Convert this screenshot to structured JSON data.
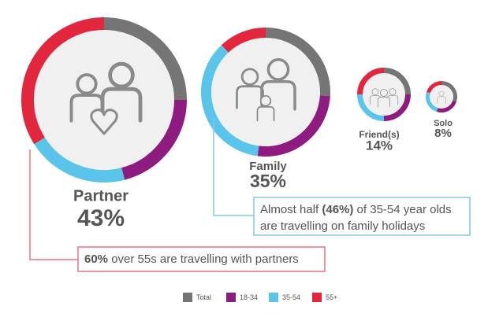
{
  "chart_data": {
    "type": "donut",
    "categories": [
      "Partner",
      "Family",
      "Friend(s)",
      "Solo"
    ],
    "totals": [
      43,
      35,
      14,
      8
    ],
    "value_labels": [
      "43%",
      "35%",
      "14%",
      "8%"
    ],
    "series": [
      {
        "name": "Total",
        "color": "#757575",
        "values": [
          25,
          26,
          25,
          30
        ]
      },
      {
        "name": "18-34",
        "color": "#8e1b7f",
        "values": [
          21,
          26,
          25,
          25
        ]
      },
      {
        "name": "35-54",
        "color": "#5bc4ea",
        "values": [
          20,
          36,
          25,
          25
        ]
      },
      {
        "name": "55+",
        "color": "#e2263d",
        "values": [
          34,
          12,
          25,
          20
        ]
      }
    ],
    "annotations": [
      {
        "parts": [
          {
            "text": "60%",
            "bold": true
          },
          {
            "text": " over 55s are travelling with partners",
            "bold": false
          }
        ],
        "color": "#e5737f"
      },
      {
        "parts": [
          {
            "text": "Almost half ",
            "bold": false
          },
          {
            "text": "(46%)",
            "bold": true
          },
          {
            "text": " of 35-54 year olds",
            "bold": false
          },
          {
            "text": "are travelling on family holidays",
            "bold": false
          }
        ],
        "color": "#7ecbea"
      }
    ]
  }
}
